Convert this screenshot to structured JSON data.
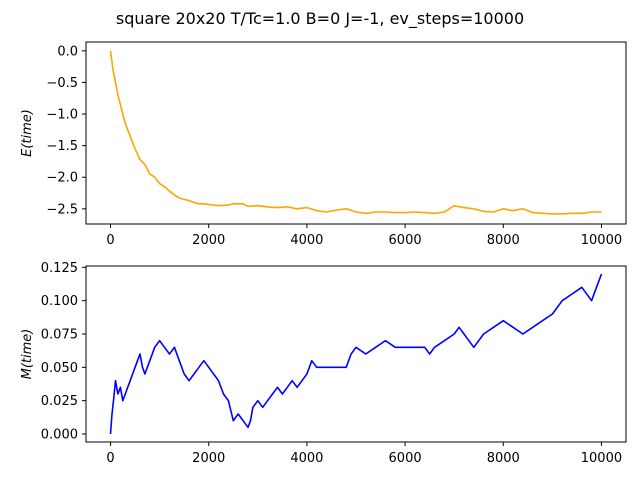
{
  "figure": {
    "suptitle": "square 20x20 T/Tc=1.0 B=0 J=-1, ev_steps=10000"
  },
  "chart_data": [
    {
      "type": "line",
      "ylabel": "E(time)",
      "xlim": [
        -500,
        10500
      ],
      "ylim": [
        -2.74,
        0.14
      ],
      "xticks": [
        0,
        2000,
        4000,
        6000,
        8000,
        10000
      ],
      "yticks": [
        0.0,
        -0.5,
        -1.0,
        -1.5,
        -2.0,
        -2.5
      ],
      "ytick_labels": [
        "0.0",
        "−0.5",
        "−1.0",
        "−1.5",
        "−2.0",
        "−2.5"
      ],
      "grid": false,
      "series": [
        {
          "color": "#ffa500",
          "x": [
            0,
            50,
            100,
            150,
            200,
            250,
            300,
            350,
            400,
            450,
            500,
            600,
            700,
            800,
            900,
            1000,
            1100,
            1200,
            1300,
            1400,
            1500,
            1600,
            1700,
            1800,
            1900,
            2000,
            2200,
            2400,
            2500,
            2700,
            2800,
            3000,
            3200,
            3400,
            3600,
            3800,
            4000,
            4200,
            4400,
            4600,
            4800,
            5000,
            5200,
            5400,
            5600,
            5800,
            6000,
            6200,
            6400,
            6600,
            6800,
            7000,
            7200,
            7400,
            7600,
            7800,
            8000,
            8200,
            8400,
            8600,
            8800,
            9000,
            9200,
            9400,
            9600,
            9800,
            10000
          ],
          "y": [
            0.0,
            -0.3,
            -0.5,
            -0.7,
            -0.85,
            -1.0,
            -1.15,
            -1.25,
            -1.35,
            -1.45,
            -1.55,
            -1.72,
            -1.8,
            -1.95,
            -2.0,
            -2.1,
            -2.15,
            -2.22,
            -2.28,
            -2.33,
            -2.35,
            -2.37,
            -2.4,
            -2.42,
            -2.42,
            -2.43,
            -2.45,
            -2.44,
            -2.42,
            -2.42,
            -2.46,
            -2.45,
            -2.47,
            -2.48,
            -2.47,
            -2.5,
            -2.48,
            -2.53,
            -2.55,
            -2.52,
            -2.5,
            -2.55,
            -2.57,
            -2.55,
            -2.55,
            -2.56,
            -2.56,
            -2.55,
            -2.56,
            -2.57,
            -2.55,
            -2.45,
            -2.48,
            -2.5,
            -2.54,
            -2.55,
            -2.5,
            -2.53,
            -2.5,
            -2.56,
            -2.57,
            -2.58,
            -2.58,
            -2.57,
            -2.57,
            -2.55,
            -2.55
          ]
        }
      ]
    },
    {
      "type": "line",
      "ylabel": "M(time)",
      "xlim": [
        -500,
        10500
      ],
      "ylim": [
        -0.006,
        0.126
      ],
      "xticks": [
        0,
        2000,
        4000,
        6000,
        8000,
        10000
      ],
      "yticks": [
        0.0,
        0.025,
        0.05,
        0.075,
        0.1,
        0.125
      ],
      "ytick_labels": [
        "0.000",
        "0.025",
        "0.050",
        "0.075",
        "0.100",
        "0.125"
      ],
      "grid": false,
      "series": [
        {
          "color": "#0000ff",
          "x": [
            0,
            30,
            60,
            100,
            150,
            200,
            250,
            300,
            350,
            400,
            450,
            500,
            550,
            600,
            650,
            700,
            800,
            900,
            1000,
            1100,
            1200,
            1300,
            1400,
            1500,
            1600,
            1700,
            1800,
            1900,
            2000,
            2100,
            2200,
            2300,
            2400,
            2500,
            2600,
            2700,
            2800,
            2850,
            2900,
            3000,
            3100,
            3200,
            3300,
            3400,
            3500,
            3600,
            3700,
            3800,
            3900,
            4000,
            4100,
            4200,
            4300,
            4400,
            4600,
            4800,
            4900,
            5000,
            5200,
            5400,
            5600,
            5800,
            6000,
            6200,
            6400,
            6500,
            6600,
            6800,
            7000,
            7100,
            7200,
            7300,
            7400,
            7600,
            7800,
            8000,
            8200,
            8400,
            8600,
            8800,
            9000,
            9200,
            9400,
            9600,
            9800,
            9900,
            10000
          ],
          "y": [
            0.0,
            0.015,
            0.025,
            0.04,
            0.03,
            0.035,
            0.025,
            0.03,
            0.035,
            0.04,
            0.045,
            0.05,
            0.055,
            0.06,
            0.05,
            0.045,
            0.055,
            0.065,
            0.07,
            0.065,
            0.06,
            0.065,
            0.055,
            0.045,
            0.04,
            0.045,
            0.05,
            0.055,
            0.05,
            0.045,
            0.04,
            0.03,
            0.025,
            0.01,
            0.015,
            0.01,
            0.005,
            0.01,
            0.02,
            0.025,
            0.02,
            0.025,
            0.03,
            0.035,
            0.03,
            0.035,
            0.04,
            0.035,
            0.04,
            0.045,
            0.055,
            0.05,
            0.05,
            0.05,
            0.05,
            0.05,
            0.06,
            0.065,
            0.06,
            0.065,
            0.07,
            0.065,
            0.065,
            0.065,
            0.065,
            0.06,
            0.065,
            0.07,
            0.075,
            0.08,
            0.075,
            0.07,
            0.065,
            0.075,
            0.08,
            0.085,
            0.08,
            0.075,
            0.08,
            0.085,
            0.09,
            0.1,
            0.105,
            0.11,
            0.1,
            0.11,
            0.12
          ]
        }
      ]
    }
  ]
}
